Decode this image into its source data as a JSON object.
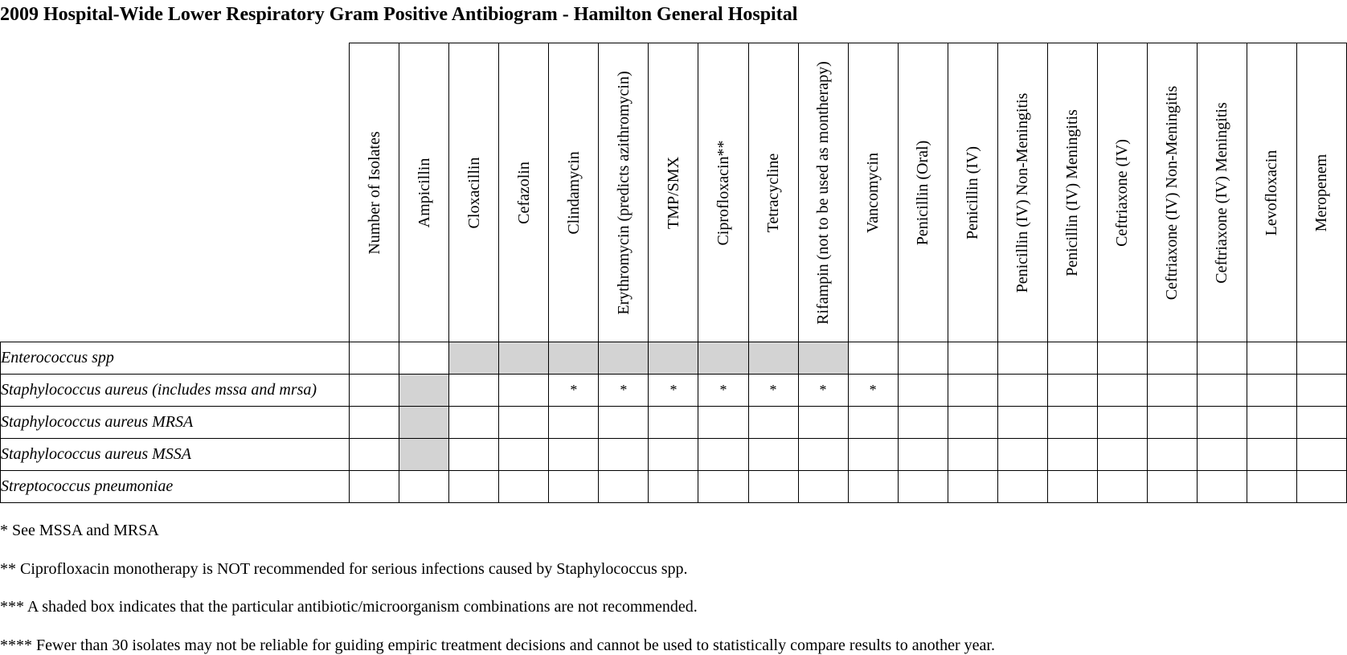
{
  "title": "2009 Hospital-Wide Lower Respiratory Gram Positive Antibiogram - Hamilton General Hospital",
  "columns": [
    "Number of Isolates",
    "Ampicillin",
    "Cloxacillin",
    "Cefazolin",
    "Clindamycin",
    "Erythromycin (predicts azithromycin)",
    "TMP/SMX",
    "Ciprofloxacin**",
    "Tetracycline",
    "Rifampin (not to be used as montherapy)",
    "Vancomycin",
    "Penicillin (Oral)",
    "Penicillin (IV)",
    "Penicillin (IV) Non-Meningitis",
    "Penicillin (IV) Meningitis",
    "Ceftriaxone (IV)",
    "Ceftriaxone (IV) Non-Meningitis",
    "Ceftriaxone (IV) Meningitis",
    "Levofloxacin",
    "Meropenem"
  ],
  "rows": [
    {
      "organism": "Enterococcus spp",
      "cells": [
        "",
        "",
        "",
        "",
        "",
        "",
        "",
        "",
        "",
        "",
        "",
        "",
        "",
        "",
        "",
        "",
        "",
        "",
        "",
        ""
      ],
      "shaded": [
        false,
        false,
        true,
        true,
        true,
        true,
        true,
        true,
        true,
        true,
        false,
        false,
        false,
        false,
        false,
        false,
        false,
        false,
        false,
        false
      ]
    },
    {
      "organism": "Staphylococcus aureus (includes mssa and mrsa)",
      "cells": [
        "",
        "",
        "",
        "",
        "*",
        "*",
        "*",
        "*",
        "*",
        "*",
        "*",
        "",
        "",
        "",
        "",
        "",
        "",
        "",
        "",
        ""
      ],
      "shaded": [
        false,
        true,
        false,
        false,
        false,
        false,
        false,
        false,
        false,
        false,
        false,
        false,
        false,
        false,
        false,
        false,
        false,
        false,
        false,
        false
      ]
    },
    {
      "organism": "Staphylococcus aureus MRSA",
      "cells": [
        "",
        "",
        "",
        "",
        "",
        "",
        "",
        "",
        "",
        "",
        "",
        "",
        "",
        "",
        "",
        "",
        "",
        "",
        "",
        ""
      ],
      "shaded": [
        false,
        true,
        false,
        false,
        false,
        false,
        false,
        false,
        false,
        false,
        false,
        false,
        false,
        false,
        false,
        false,
        false,
        false,
        false,
        false
      ]
    },
    {
      "organism": "Staphylococcus aureus MSSA",
      "cells": [
        "",
        "",
        "",
        "",
        "",
        "",
        "",
        "",
        "",
        "",
        "",
        "",
        "",
        "",
        "",
        "",
        "",
        "",
        "",
        ""
      ],
      "shaded": [
        false,
        true,
        false,
        false,
        false,
        false,
        false,
        false,
        false,
        false,
        false,
        false,
        false,
        false,
        false,
        false,
        false,
        false,
        false,
        false
      ]
    },
    {
      "organism": "Streptococcus pneumoniae",
      "cells": [
        "",
        "",
        "",
        "",
        "",
        "",
        "",
        "",
        "",
        "",
        "",
        "",
        "",
        "",
        "",
        "",
        "",
        "",
        "",
        ""
      ],
      "shaded": [
        false,
        false,
        false,
        false,
        false,
        false,
        false,
        false,
        false,
        false,
        false,
        false,
        false,
        false,
        false,
        false,
        false,
        false,
        false,
        false
      ]
    }
  ],
  "shade_color": "#d3d3d3",
  "notes": [
    "* See MSSA and MRSA",
    "** Ciprofloxacin monotherapy is NOT recommended for serious infections caused by Staphylococcus spp.",
    "*** A shaded box indicates that the particular antibiotic/microorganism combinations are not recommended.",
    "**** Fewer than 30 isolates may not be reliable for guiding empiric treatment decisions and cannot be used to statistically compare results to another year."
  ]
}
